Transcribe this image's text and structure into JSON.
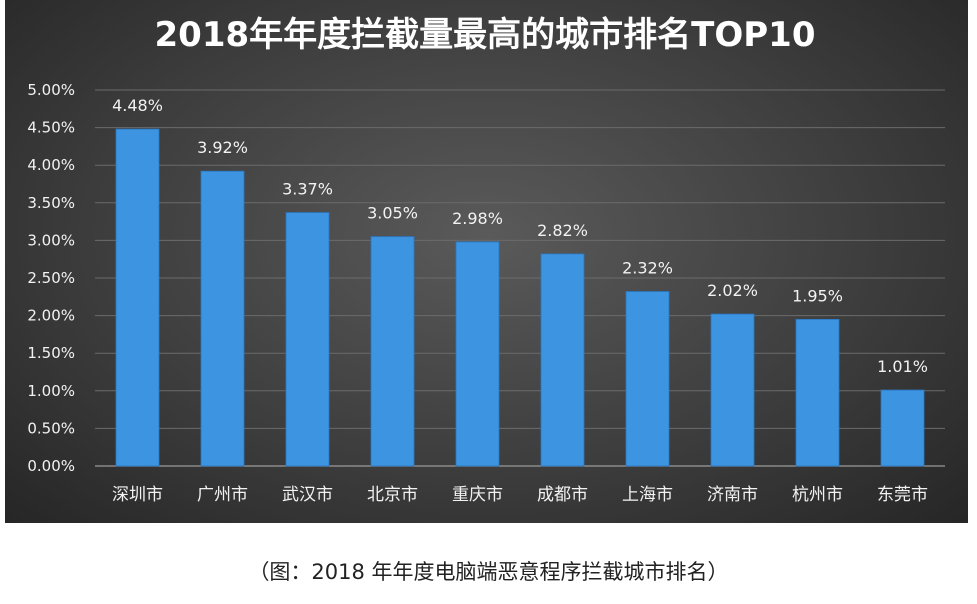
{
  "caption": "（图：2018 年年度电脑端恶意程序拦截城市排名）",
  "colors": {
    "bar": "#3d94e0",
    "bar_edge": "#2a78c4",
    "background": "#3e3e3e"
  },
  "chart_data": {
    "type": "bar",
    "title": "2018年年度拦截量最高的城市排名TOP10",
    "categories": [
      "深圳市",
      "广州市",
      "武汉市",
      "北京市",
      "重庆市",
      "成都市",
      "上海市",
      "济南市",
      "杭州市",
      "东莞市"
    ],
    "values": [
      4.48,
      3.92,
      3.37,
      3.05,
      2.98,
      2.82,
      2.32,
      2.02,
      1.95,
      1.01
    ],
    "value_labels": [
      "4.48%",
      "3.92%",
      "3.37%",
      "3.05%",
      "2.98%",
      "2.82%",
      "2.32%",
      "2.02%",
      "1.95%",
      "1.01%"
    ],
    "yticks": [
      0,
      0.5,
      1,
      1.5,
      2,
      2.5,
      3,
      3.5,
      4,
      4.5,
      5
    ],
    "ytick_labels": [
      "0.00%",
      "0.50%",
      "1.00%",
      "1.50%",
      "2.00%",
      "2.50%",
      "3.00%",
      "3.50%",
      "4.00%",
      "4.50%",
      "5.00%"
    ],
    "ylim": [
      0,
      5
    ],
    "grid": true,
    "xlabel": "",
    "ylabel": ""
  }
}
